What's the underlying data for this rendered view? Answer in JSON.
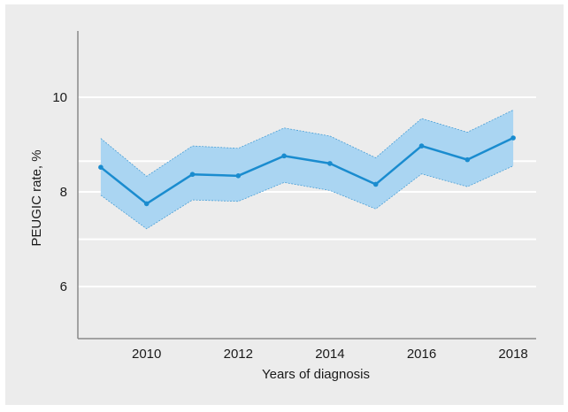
{
  "chart_data": {
    "type": "line",
    "xlabel": "Years of diagnosis",
    "ylabel": "PEUGIC rate, %",
    "xlim": [
      2008.5,
      2018.5
    ],
    "ylim": [
      4.9,
      11.4
    ],
    "x_ticks": [
      2010,
      2012,
      2014,
      2016,
      2018
    ],
    "y_ticks": [
      6,
      8,
      10
    ],
    "grid": {
      "horizontal": true,
      "vertical": false
    },
    "colors": {
      "line": "#1a8ccf",
      "band": "#aad5f2",
      "band_edge": "#4a9fd6",
      "grid": "#ffffff",
      "axis": "#8a8a8a"
    },
    "series": [
      {
        "x": [
          2009,
          2010,
          2011,
          2012,
          2013,
          2014,
          2015,
          2016,
          2017,
          2018
        ],
        "values": [
          8.52,
          7.75,
          8.37,
          8.34,
          8.76,
          8.6,
          8.16,
          8.97,
          8.68,
          9.14
        ],
        "lower": [
          7.93,
          7.22,
          7.83,
          7.8,
          8.2,
          8.03,
          7.64,
          8.38,
          8.11,
          8.55
        ],
        "upper": [
          9.13,
          8.33,
          8.97,
          8.92,
          9.35,
          9.18,
          8.72,
          9.55,
          9.26,
          9.73
        ]
      }
    ]
  }
}
